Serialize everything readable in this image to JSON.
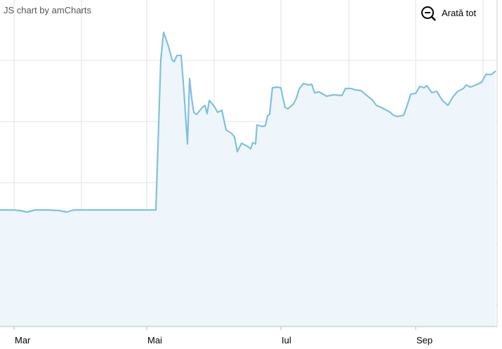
{
  "chart_data": {
    "type": "area",
    "credit": "JS chart by amCharts",
    "zoom_button": "Arată tot",
    "color": "#7fc1de",
    "fill": "#eef6fb",
    "x": [
      0,
      20,
      30,
      38,
      50,
      70,
      85,
      95,
      105,
      150,
      200,
      222,
      229,
      233,
      240,
      245,
      248,
      252,
      258,
      262,
      267,
      270,
      273,
      276,
      280,
      288,
      292,
      295,
      298,
      305,
      310,
      316,
      322,
      330,
      334,
      338,
      344,
      352,
      357,
      360,
      364,
      366,
      373,
      378,
      381,
      384,
      388,
      394,
      400,
      406,
      410,
      418,
      422,
      426,
      432,
      440,
      444,
      448,
      455,
      465,
      475,
      487,
      492,
      500,
      506,
      514,
      520,
      530,
      536,
      545,
      556,
      560,
      566,
      575,
      580,
      585,
      592,
      598,
      604,
      608,
      615,
      622,
      630,
      638,
      645,
      652,
      660,
      664,
      670,
      680,
      686,
      692,
      700,
      706
    ],
    "values": [
      166,
      166,
      165,
      163,
      166,
      166,
      165,
      163,
      166,
      166,
      166,
      166,
      380,
      419,
      399,
      380,
      377,
      386,
      386,
      335,
      260,
      353,
      325,
      305,
      302,
      312,
      315,
      303,
      322,
      314,
      305,
      308,
      280,
      275,
      270,
      249,
      261,
      257,
      253,
      262,
      260,
      287,
      285,
      286,
      300,
      302,
      340,
      341,
      340,
      312,
      310,
      317,
      325,
      338,
      346,
      344,
      345,
      333,
      334,
      328,
      330,
      329,
      339,
      339,
      337,
      336,
      331,
      323,
      315,
      311,
      305,
      301,
      299,
      301,
      315,
      331,
      332,
      342,
      340,
      343,
      333,
      335,
      322,
      315,
      327,
      335,
      339,
      344,
      341,
      345,
      348,
      359,
      359,
      364
    ],
    "xlim": [
      0,
      706
    ],
    "ylim": [
      0,
      465
    ],
    "xticks": [
      {
        "value": 20,
        "label": "Mar"
      },
      {
        "value": 209,
        "label": "Mai"
      },
      {
        "value": 400,
        "label": "Iul"
      },
      {
        "value": 592,
        "label": "Sep"
      }
    ],
    "grid": true
  }
}
